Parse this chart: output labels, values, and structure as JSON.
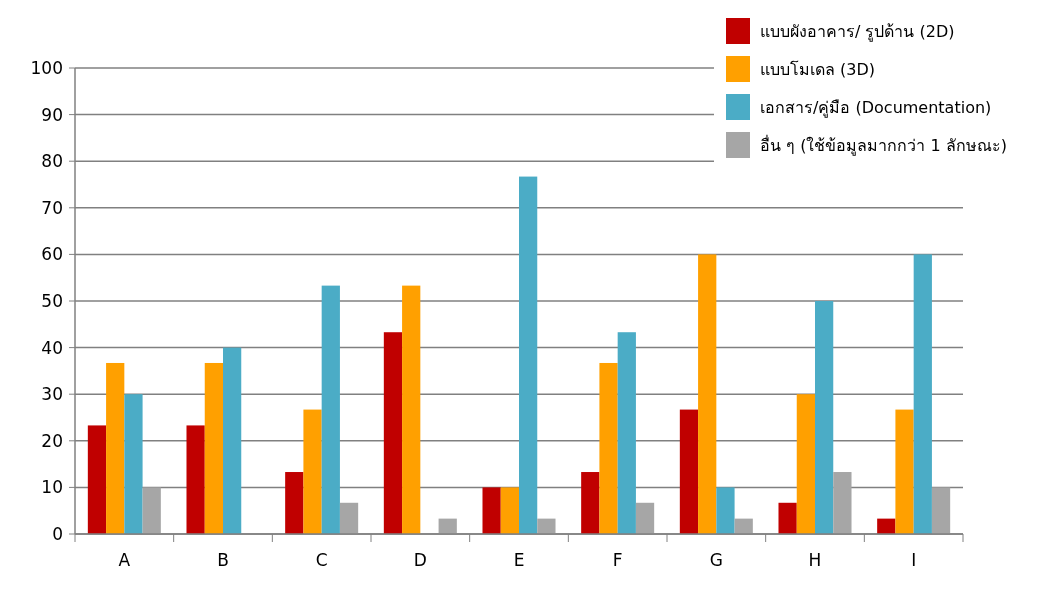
{
  "chart_data": {
    "type": "bar",
    "categories": [
      "A",
      "B",
      "C",
      "D",
      "E",
      "F",
      "G",
      "H",
      "I"
    ],
    "series": [
      {
        "name": "แบบผังอาคาร/ รูปด้าน (2D)",
        "color": "#c00000",
        "values": [
          23.3,
          23.3,
          13.3,
          43.3,
          10,
          13.3,
          26.7,
          6.7,
          3.3
        ]
      },
      {
        "name": "แบบโมเดล (3D)",
        "color": "#ffa000",
        "values": [
          36.7,
          36.7,
          26.7,
          53.3,
          10,
          36.7,
          60,
          30,
          26.7
        ]
      },
      {
        "name": "เอกสาร/คู่มือ (Documentation)",
        "color": "#4bacc6",
        "values": [
          30,
          40,
          53.3,
          0,
          76.7,
          43.3,
          10,
          50,
          60
        ]
      },
      {
        "name": "อื่น ๆ (ใช้ข้อมูลมากกว่า 1 ลักษณะ)",
        "color": "#a6a6a6",
        "values": [
          10,
          0,
          6.7,
          3.3,
          3.3,
          6.7,
          3.3,
          13.3,
          10
        ]
      }
    ],
    "ylim": [
      0,
      100
    ],
    "yticks": [
      0,
      10,
      20,
      30,
      40,
      50,
      60,
      70,
      80,
      90,
      100
    ],
    "grid": "y",
    "legend": "top right"
  }
}
